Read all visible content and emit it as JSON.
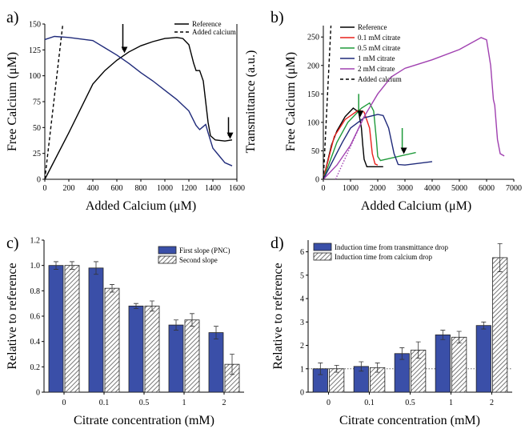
{
  "chart_data": [
    {
      "panel": "a)",
      "type": "line",
      "xlabel": "Added Calcium (μM)",
      "ylabel": "Free Calcium (μM)",
      "ylabel_right": "Transmittance (a.u.)",
      "xlim": [
        0,
        1600
      ],
      "ylim": [
        0,
        150
      ],
      "xticks": [
        0,
        200,
        400,
        600,
        800,
        1000,
        1200,
        1400,
        1600
      ],
      "yticks": [
        0,
        25,
        50,
        75,
        100,
        125,
        150
      ],
      "legend": [
        "Reference",
        "Added calcium"
      ],
      "series": [
        {
          "name": "Reference",
          "color": "#000000",
          "style": "solid",
          "points": [
            [
              0,
              0
            ],
            [
              200,
              45
            ],
            [
              400,
              92
            ],
            [
              500,
              105
            ],
            [
              600,
              115
            ],
            [
              700,
              123
            ],
            [
              800,
              129
            ],
            [
              900,
              133
            ],
            [
              1000,
              136
            ],
            [
              1100,
              137
            ],
            [
              1150,
              136
            ],
            [
              1200,
              130
            ],
            [
              1240,
              112
            ],
            [
              1260,
              105
            ],
            [
              1290,
              105
            ],
            [
              1320,
              95
            ],
            [
              1340,
              75
            ],
            [
              1360,
              55
            ],
            [
              1380,
              42
            ],
            [
              1420,
              38
            ],
            [
              1500,
              37
            ],
            [
              1560,
              38
            ]
          ]
        },
        {
          "name": "Added calcium",
          "color": "#000000",
          "style": "dashed",
          "points": [
            [
              0,
              0
            ],
            [
              150,
              150
            ]
          ]
        },
        {
          "name": "Transmittance",
          "color": "#1f2a7a",
          "style": "solid",
          "points": [
            [
              0,
              135
            ],
            [
              80,
              138
            ],
            [
              200,
              137
            ],
            [
              400,
              134
            ],
            [
              500,
              127
            ],
            [
              600,
              120
            ],
            [
              700,
              112
            ],
            [
              800,
              103
            ],
            [
              900,
              95
            ],
            [
              1000,
              86
            ],
            [
              1100,
              77
            ],
            [
              1200,
              66
            ],
            [
              1260,
              52
            ],
            [
              1290,
              48
            ],
            [
              1320,
              51
            ],
            [
              1340,
              53
            ],
            [
              1360,
              45
            ],
            [
              1400,
              30
            ],
            [
              1450,
              23
            ],
            [
              1500,
              16
            ],
            [
              1560,
              13
            ]
          ]
        }
      ],
      "arrows": [
        [
          650,
          150,
          125
        ],
        [
          1530,
          60,
          42
        ]
      ]
    },
    {
      "panel": "b)",
      "type": "line",
      "xlabel": "Added Calcium (μM)",
      "ylabel": "Free Calcium (μM)",
      "xlim": [
        0,
        7000
      ],
      "ylim": [
        0,
        270
      ],
      "xticks": [
        0,
        1000,
        2000,
        3000,
        4000,
        5000,
        6000,
        7000
      ],
      "yticks": [
        0,
        50,
        100,
        150,
        200,
        250
      ],
      "series": [
        {
          "name": "Reference",
          "color": "#000000",
          "style": "solid",
          "points": [
            [
              0,
              0
            ],
            [
              300,
              60
            ],
            [
              500,
              85
            ],
            [
              800,
              110
            ],
            [
              1100,
              125
            ],
            [
              1300,
              118
            ],
            [
              1400,
              90
            ],
            [
              1450,
              60
            ],
            [
              1500,
              35
            ],
            [
              1600,
              22
            ],
            [
              2200,
              22
            ]
          ]
        },
        {
          "name": "0.1 mM citrate",
          "color": "#e8201c",
          "style": "solid",
          "points": [
            [
              0,
              0
            ],
            [
              400,
              75
            ],
            [
              800,
              105
            ],
            [
              1300,
              122
            ],
            [
              1500,
              118
            ],
            [
              1700,
              90
            ],
            [
              1800,
              45
            ],
            [
              1900,
              27
            ],
            [
              2000,
              25
            ]
          ]
        },
        {
          "name": "0.5 mM citrate",
          "color": "#1e9a3a",
          "style": "solid",
          "points": [
            [
              0,
              0
            ],
            [
              500,
              65
            ],
            [
              900,
              100
            ],
            [
              1400,
              125
            ],
            [
              1700,
              134
            ],
            [
              1850,
              120
            ],
            [
              1950,
              70
            ],
            [
              2000,
              40
            ],
            [
              2100,
              33
            ],
            [
              3400,
              47
            ]
          ]
        },
        {
          "name": "1 mM citrate",
          "color": "#1f2a7a",
          "style": "solid",
          "points": [
            [
              0,
              0
            ],
            [
              700,
              65
            ],
            [
              1000,
              90
            ],
            [
              1500,
              108
            ],
            [
              2000,
              114
            ],
            [
              2200,
              112
            ],
            [
              2400,
              90
            ],
            [
              2600,
              45
            ],
            [
              2750,
              26
            ],
            [
              3000,
              25
            ],
            [
              4000,
              31
            ]
          ]
        },
        {
          "name": "2 mM citrate",
          "color": "#a040b0",
          "style": "solid",
          "points": [
            [
              0,
              0
            ],
            [
              500,
              25
            ],
            [
              1000,
              60
            ],
            [
              1500,
              110
            ],
            [
              2000,
              150
            ],
            [
              2500,
              180
            ],
            [
              3000,
              195
            ],
            [
              4000,
              210
            ],
            [
              5000,
              228
            ],
            [
              5800,
              249
            ],
            [
              6000,
              245
            ],
            [
              6150,
              200
            ],
            [
              6250,
              140
            ],
            [
              6300,
              130
            ],
            [
              6400,
              70
            ],
            [
              6500,
              45
            ],
            [
              6650,
              41
            ]
          ]
        },
        {
          "name": "Added calcium",
          "color": "#000000",
          "style": "dashed",
          "points": [
            [
              0,
              0
            ],
            [
              280,
              270
            ]
          ]
        }
      ],
      "extra_lines": [
        {
          "color": "#a040b0",
          "style": "dotted",
          "points": [
            [
              450,
              0
            ],
            [
              1500,
              110
            ]
          ]
        }
      ],
      "arrows": [
        [
          1300,
          150,
          115
        ],
        [
          2900,
          90,
          50
        ]
      ]
    },
    {
      "panel": "c)",
      "type": "bar",
      "xlabel": "Citrate concentration (mM)",
      "ylabel": "Relative to reference",
      "ylim": [
        0,
        1.2
      ],
      "yticks": [
        0,
        0.2,
        0.4,
        0.6,
        0.8,
        1.0,
        1.2
      ],
      "ytick_labels": [
        "0",
        "0.2",
        "0.4",
        "0.6",
        "0.8",
        "1.0",
        "1.2"
      ],
      "categories": [
        "0",
        "0.1",
        "0.5",
        "1",
        "2"
      ],
      "series": [
        {
          "name": "First slope (PNC)",
          "values": [
            1.0,
            0.98,
            0.68,
            0.53,
            0.47
          ],
          "errors": [
            0.03,
            0.05,
            0.02,
            0.04,
            0.05
          ]
        },
        {
          "name": "Second slope",
          "values": [
            1.0,
            0.82,
            0.68,
            0.57,
            0.22
          ],
          "errors": [
            0.03,
            0.03,
            0.04,
            0.05,
            0.08
          ]
        }
      ]
    },
    {
      "panel": "d)",
      "type": "bar",
      "xlabel": "Citrate concentration (mM)",
      "ylabel": "Relative to reference",
      "ylim": [
        0,
        6.5
      ],
      "yticks": [
        0,
        1,
        2,
        3,
        4,
        5,
        6
      ],
      "ytick_labels": [
        "0",
        "1",
        "2",
        "3",
        "4",
        "5",
        "6"
      ],
      "refline": 1,
      "categories": [
        "0",
        "0.1",
        "0.5",
        "1",
        "2"
      ],
      "series": [
        {
          "name": "Induction time from transmittance drop",
          "values": [
            1.0,
            1.1,
            1.65,
            2.45,
            2.85
          ],
          "errors": [
            0.25,
            0.2,
            0.25,
            0.2,
            0.15
          ]
        },
        {
          "name": "Induction time from calcium drop",
          "values": [
            1.0,
            1.05,
            1.8,
            2.35,
            5.75
          ],
          "errors": [
            0.15,
            0.2,
            0.35,
            0.25,
            0.6
          ]
        }
      ]
    }
  ]
}
